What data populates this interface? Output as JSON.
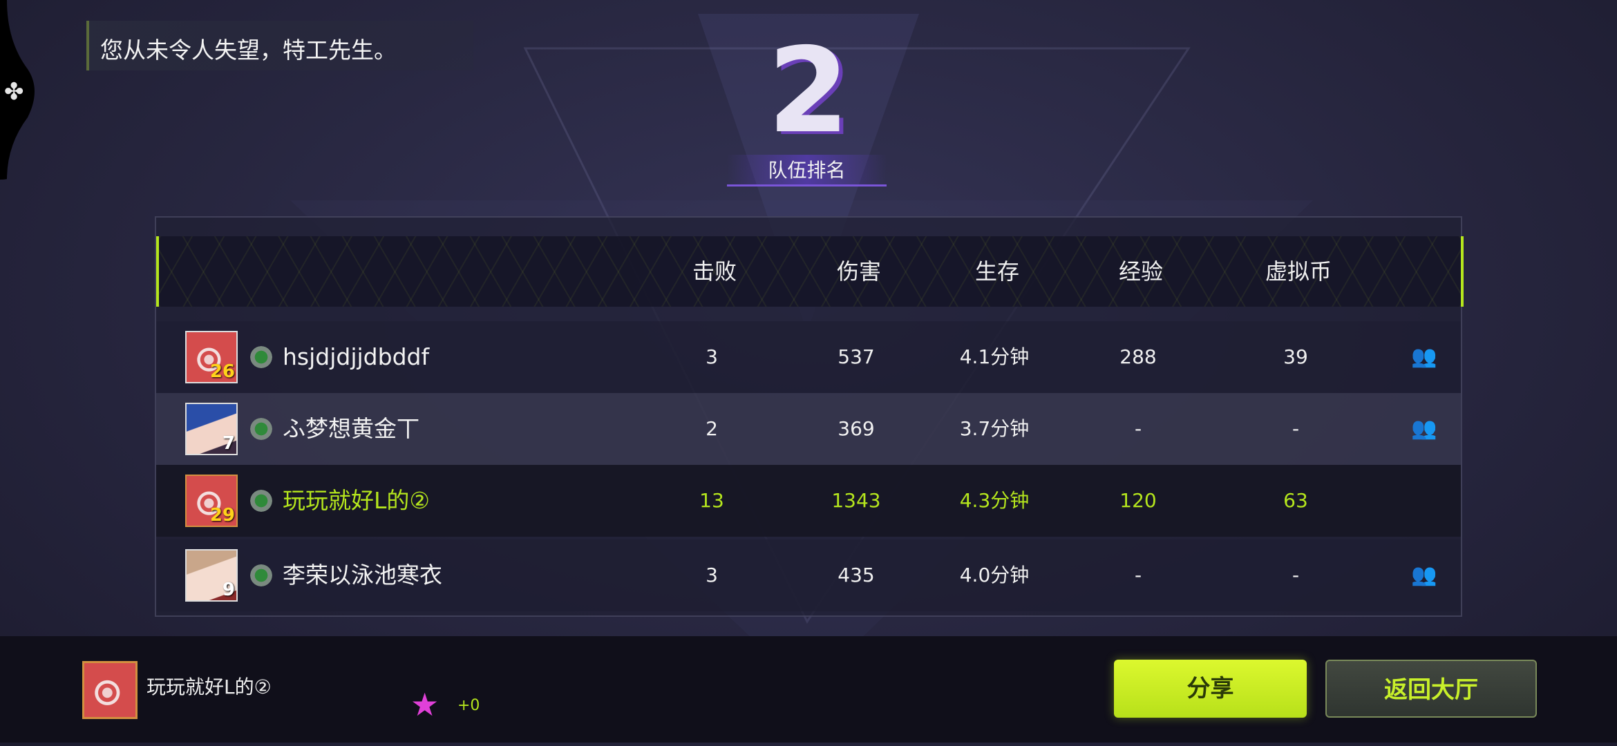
{
  "banner": {
    "message": "您从未令人失望，特工先生。"
  },
  "team_rank": {
    "value": "2",
    "label": "队伍排名"
  },
  "table": {
    "columns": [
      "击败",
      "伤害",
      "生存",
      "经验",
      "虚拟币"
    ],
    "rows": [
      {
        "name": "hsjdjdjjdbddf",
        "level": "26",
        "kills": "3",
        "damage": "537",
        "survival": "4.1分钟",
        "exp": "288",
        "coins": "39",
        "is_self": false,
        "add_friend": true
      },
      {
        "name": "ふ梦想黄金丅",
        "level": "7",
        "kills": "2",
        "damage": "369",
        "survival": "3.7分钟",
        "exp": "-",
        "coins": "-",
        "is_self": false,
        "add_friend": true
      },
      {
        "name": "玩玩就好L的②",
        "level": "29",
        "kills": "13",
        "damage": "1343",
        "survival": "4.3分钟",
        "exp": "120",
        "coins": "63",
        "is_self": true,
        "add_friend": false
      },
      {
        "name": "李荣以泳池寒衣",
        "level": "9",
        "kills": "3",
        "damage": "435",
        "survival": "4.0分钟",
        "exp": "-",
        "coins": "-",
        "is_self": false,
        "add_friend": true
      }
    ]
  },
  "footer": {
    "player_name": "玩玩就好L的②",
    "star_delta": "+0",
    "share_label": "分享",
    "back_label": "返回大厅"
  },
  "icons": {
    "left_edge": "puzzle-icon",
    "add_friend": "add-friend-icon",
    "star": "star-icon",
    "rank_badge": "rank-badge-icon"
  },
  "colors": {
    "accent": "#b5e61d",
    "star": "#e040d8",
    "rank_purple": "#6a3fb8"
  }
}
